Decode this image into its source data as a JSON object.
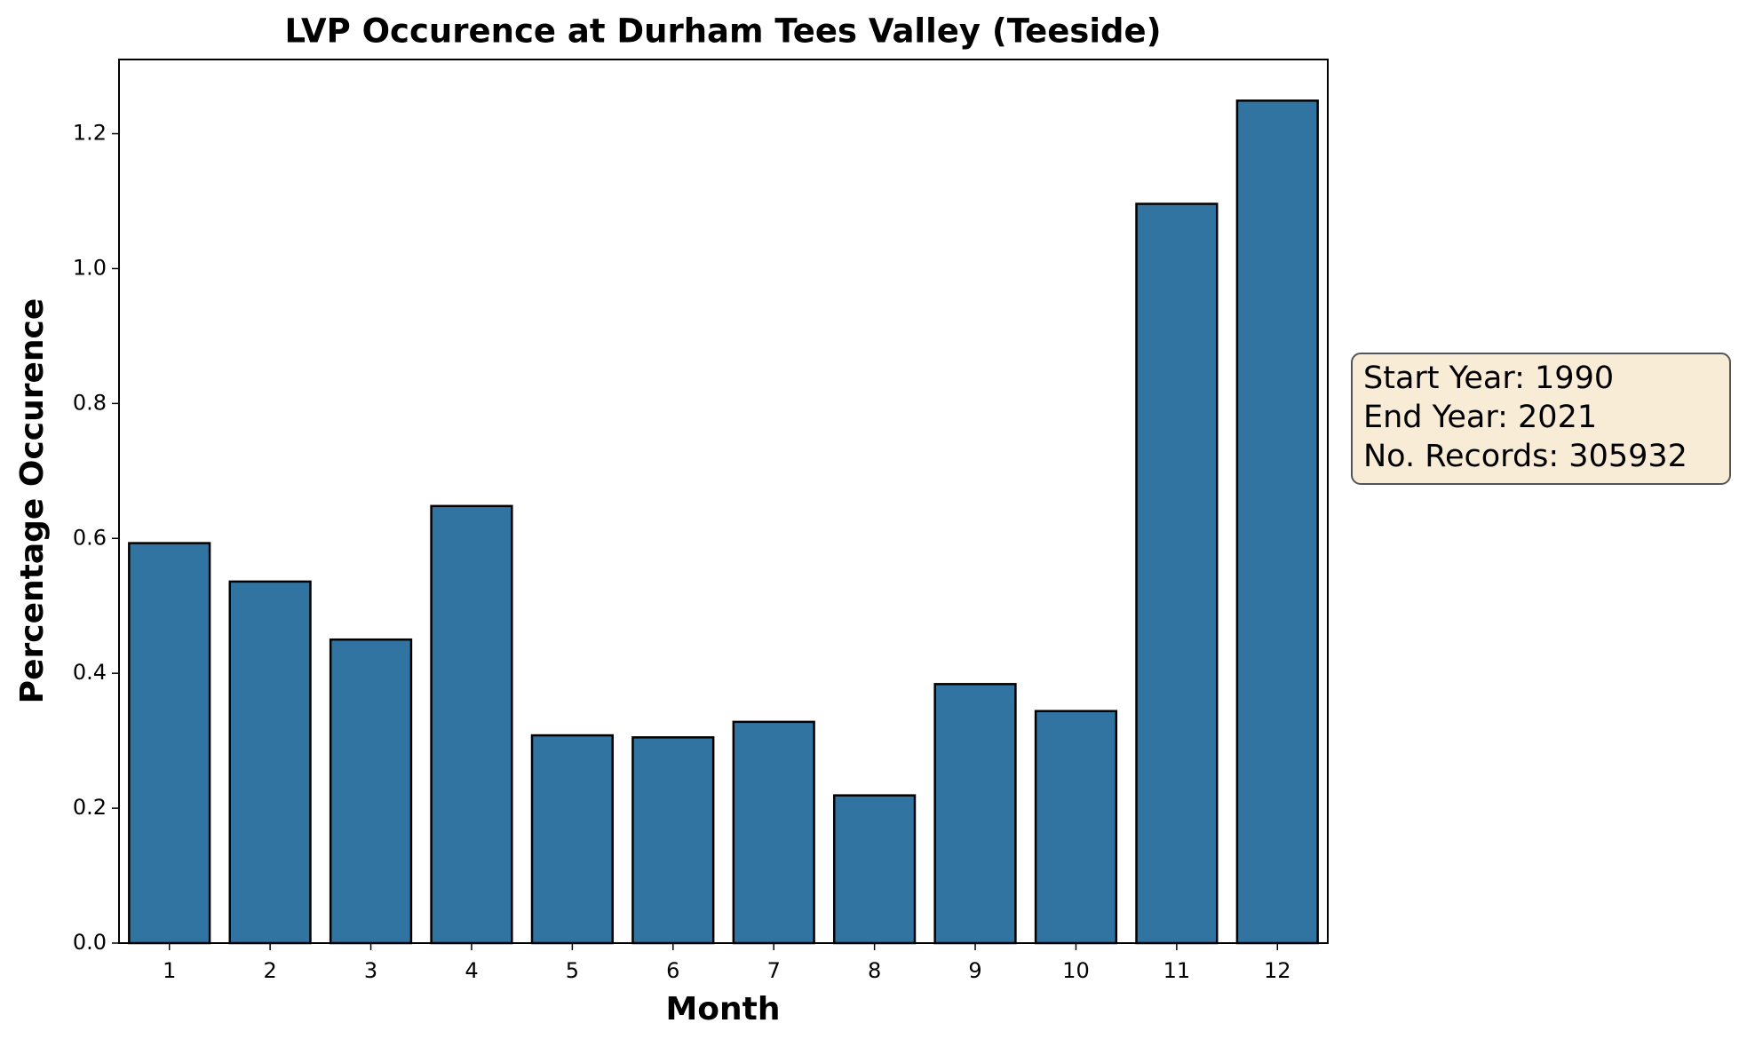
{
  "chart_data": {
    "type": "bar",
    "title": "LVP Occurence at Durham Tees Valley (Teeside)",
    "x_label": "Month",
    "y_label": "Percentage Occurence",
    "categories": [
      "1",
      "2",
      "3",
      "4",
      "5",
      "6",
      "7",
      "8",
      "9",
      "10",
      "11",
      "12"
    ],
    "values": [
      0.593,
      0.536,
      0.45,
      0.648,
      0.308,
      0.305,
      0.328,
      0.219,
      0.384,
      0.344,
      1.096,
      1.249
    ],
    "color": "#3274a1",
    "edge_color": "#000000",
    "ylim": [
      0,
      1.31
    ],
    "yticks": [
      {
        "value": 0,
        "label": "0.0"
      },
      {
        "value": 0.2,
        "label": "0.2"
      },
      {
        "value": 0.4,
        "label": "0.4"
      },
      {
        "value": 0.6,
        "label": "0.6"
      },
      {
        "value": 0.8,
        "label": "0.8"
      },
      {
        "value": 1,
        "label": "1.0"
      },
      {
        "value": 1.2,
        "label": "1.2"
      }
    ],
    "grid": false,
    "annotation": [
      "Start Year: 1990",
      "End Year: 2021",
      "No. Records: 305932"
    ]
  }
}
